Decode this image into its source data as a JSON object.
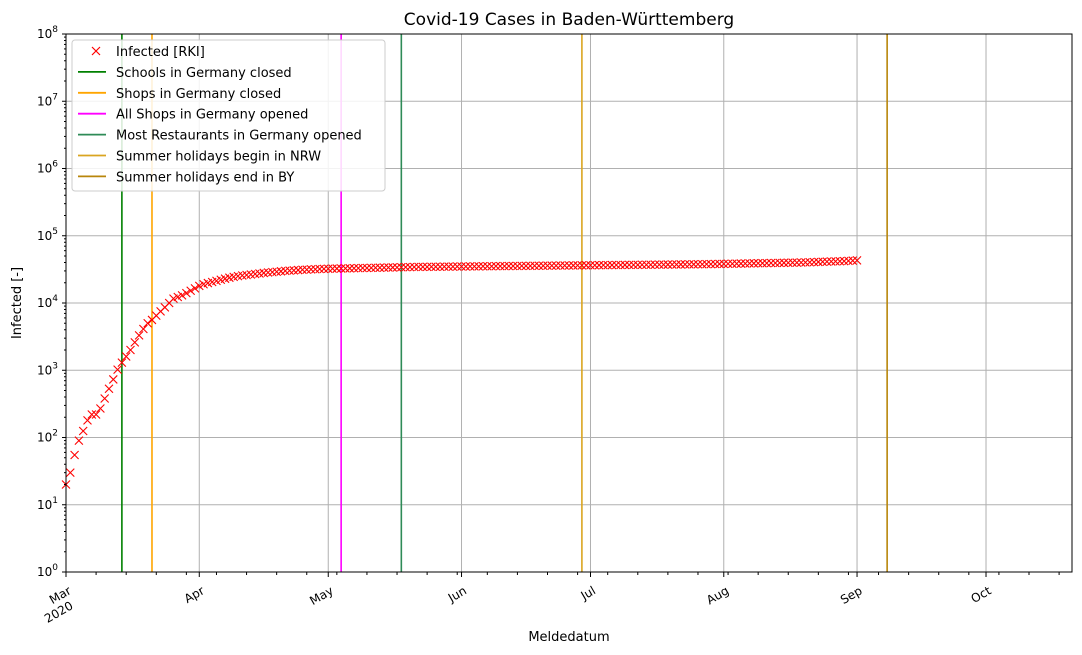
{
  "chart_data": {
    "type": "scatter",
    "title": "Covid-19 Cases in Baden-Württemberg",
    "xlabel": "Meldedatum",
    "ylabel": "Infected [-]",
    "x_axis": {
      "type": "date",
      "range": [
        "2020-03-01",
        "2020-10-21"
      ],
      "ticks": [
        {
          "date": "2020-03-01",
          "label": "Mar",
          "sublabel": "2020"
        },
        {
          "date": "2020-04-01",
          "label": "Apr"
        },
        {
          "date": "2020-05-01",
          "label": "May"
        },
        {
          "date": "2020-06-01",
          "label": "Jun"
        },
        {
          "date": "2020-07-01",
          "label": "Jul"
        },
        {
          "date": "2020-08-01",
          "label": "Aug"
        },
        {
          "date": "2020-09-01",
          "label": "Sep"
        },
        {
          "date": "2020-10-01",
          "label": "Oct"
        }
      ]
    },
    "y_axis": {
      "scale": "log",
      "range": [
        1,
        100000000
      ],
      "tick_exponents": [
        0,
        1,
        2,
        3,
        4,
        5,
        6,
        7,
        8
      ]
    },
    "grid": true,
    "legend_position": "top-left",
    "series": [
      {
        "name": "Infected [RKI]",
        "marker": "x",
        "color": "#ff0000",
        "points": [
          [
            "2020-03-01",
            20
          ],
          [
            "2020-03-02",
            30
          ],
          [
            "2020-03-03",
            55
          ],
          [
            "2020-03-04",
            90
          ],
          [
            "2020-03-05",
            125
          ],
          [
            "2020-03-06",
            180
          ],
          [
            "2020-03-07",
            220
          ],
          [
            "2020-03-08",
            220
          ],
          [
            "2020-03-09",
            270
          ],
          [
            "2020-03-10",
            380
          ],
          [
            "2020-03-11",
            530
          ],
          [
            "2020-03-12",
            730
          ],
          [
            "2020-03-13",
            1020
          ],
          [
            "2020-03-14",
            1300
          ],
          [
            "2020-03-15",
            1600
          ],
          [
            "2020-03-16",
            2000
          ],
          [
            "2020-03-17",
            2600
          ],
          [
            "2020-03-18",
            3300
          ],
          [
            "2020-03-19",
            4100
          ],
          [
            "2020-03-20",
            5000
          ],
          [
            "2020-03-21",
            5600
          ],
          [
            "2020-03-22",
            6500
          ],
          [
            "2020-03-23",
            7500
          ],
          [
            "2020-03-24",
            8600
          ],
          [
            "2020-03-25",
            10000
          ],
          [
            "2020-03-26",
            11600
          ],
          [
            "2020-03-27",
            12300
          ],
          [
            "2020-03-28",
            13000
          ],
          [
            "2020-03-29",
            14000
          ],
          [
            "2020-03-30",
            15200
          ],
          [
            "2020-03-31",
            16500
          ],
          [
            "2020-04-01",
            18000
          ],
          [
            "2020-04-02",
            19000
          ],
          [
            "2020-04-03",
            19800
          ],
          [
            "2020-04-04",
            20500
          ],
          [
            "2020-04-05",
            21300
          ],
          [
            "2020-04-06",
            22200
          ],
          [
            "2020-04-07",
            23000
          ],
          [
            "2020-04-08",
            23800
          ],
          [
            "2020-04-09",
            24500
          ],
          [
            "2020-04-10",
            25100
          ],
          [
            "2020-04-11",
            25600
          ],
          [
            "2020-04-12",
            26100
          ],
          [
            "2020-04-13",
            26500
          ],
          [
            "2020-04-14",
            27000
          ],
          [
            "2020-04-15",
            27500
          ],
          [
            "2020-04-16",
            28000
          ],
          [
            "2020-04-17",
            28400
          ],
          [
            "2020-04-18",
            28800
          ],
          [
            "2020-04-19",
            29200
          ],
          [
            "2020-04-20",
            29600
          ],
          [
            "2020-04-21",
            30000
          ],
          [
            "2020-04-22",
            30300
          ],
          [
            "2020-04-23",
            30600
          ],
          [
            "2020-04-24",
            30900
          ],
          [
            "2020-04-25",
            31200
          ],
          [
            "2020-04-26",
            31400
          ],
          [
            "2020-04-27",
            31600
          ],
          [
            "2020-04-28",
            31800
          ],
          [
            "2020-04-29",
            32000
          ],
          [
            "2020-04-30",
            32200
          ],
          [
            "2020-05-01",
            32300
          ],
          [
            "2020-05-02",
            32400
          ],
          [
            "2020-05-03",
            32500
          ],
          [
            "2020-05-04",
            32600
          ],
          [
            "2020-05-05",
            32700
          ],
          [
            "2020-05-06",
            32800
          ],
          [
            "2020-05-07",
            32900
          ],
          [
            "2020-05-08",
            33000
          ],
          [
            "2020-05-09",
            33100
          ],
          [
            "2020-05-10",
            33200
          ],
          [
            "2020-05-11",
            33300
          ],
          [
            "2020-05-12",
            33400
          ],
          [
            "2020-05-13",
            33500
          ],
          [
            "2020-05-14",
            33600
          ],
          [
            "2020-05-15",
            33700
          ],
          [
            "2020-05-16",
            33800
          ],
          [
            "2020-05-17",
            33900
          ],
          [
            "2020-05-18",
            34000
          ],
          [
            "2020-05-19",
            34100
          ],
          [
            "2020-05-20",
            34200
          ],
          [
            "2020-05-21",
            34300
          ],
          [
            "2020-05-22",
            34400
          ],
          [
            "2020-05-23",
            34450
          ],
          [
            "2020-05-24",
            34500
          ],
          [
            "2020-05-25",
            34550
          ],
          [
            "2020-05-26",
            34600
          ],
          [
            "2020-05-27",
            34650
          ],
          [
            "2020-05-28",
            34700
          ],
          [
            "2020-05-29",
            34750
          ],
          [
            "2020-05-30",
            34800
          ],
          [
            "2020-05-31",
            34850
          ],
          [
            "2020-06-01",
            34900
          ],
          [
            "2020-06-02",
            34950
          ],
          [
            "2020-06-03",
            35000
          ],
          [
            "2020-06-04",
            35050
          ],
          [
            "2020-06-05",
            35100
          ],
          [
            "2020-06-06",
            35150
          ],
          [
            "2020-06-07",
            35200
          ],
          [
            "2020-06-08",
            35250
          ],
          [
            "2020-06-09",
            35300
          ],
          [
            "2020-06-10",
            35350
          ],
          [
            "2020-06-11",
            35400
          ],
          [
            "2020-06-12",
            35450
          ],
          [
            "2020-06-13",
            35500
          ],
          [
            "2020-06-14",
            35550
          ],
          [
            "2020-06-15",
            35600
          ],
          [
            "2020-06-16",
            35650
          ],
          [
            "2020-06-17",
            35700
          ],
          [
            "2020-06-18",
            35750
          ],
          [
            "2020-06-19",
            35800
          ],
          [
            "2020-06-20",
            35850
          ],
          [
            "2020-06-21",
            35900
          ],
          [
            "2020-06-22",
            35950
          ],
          [
            "2020-06-23",
            36000
          ],
          [
            "2020-06-24",
            36050
          ],
          [
            "2020-06-25",
            36100
          ],
          [
            "2020-06-26",
            36150
          ],
          [
            "2020-06-27",
            36200
          ],
          [
            "2020-06-28",
            36250
          ],
          [
            "2020-06-29",
            36300
          ],
          [
            "2020-06-30",
            36350
          ],
          [
            "2020-07-01",
            36400
          ],
          [
            "2020-07-02",
            36450
          ],
          [
            "2020-07-03",
            36500
          ],
          [
            "2020-07-04",
            36550
          ],
          [
            "2020-07-05",
            36600
          ],
          [
            "2020-07-06",
            36650
          ],
          [
            "2020-07-07",
            36700
          ],
          [
            "2020-07-08",
            36750
          ],
          [
            "2020-07-09",
            36800
          ],
          [
            "2020-07-10",
            36850
          ],
          [
            "2020-07-11",
            36900
          ],
          [
            "2020-07-12",
            36950
          ],
          [
            "2020-07-13",
            37000
          ],
          [
            "2020-07-14",
            37050
          ],
          [
            "2020-07-15",
            37100
          ],
          [
            "2020-07-16",
            37150
          ],
          [
            "2020-07-17",
            37200
          ],
          [
            "2020-07-18",
            37250
          ],
          [
            "2020-07-19",
            37300
          ],
          [
            "2020-07-20",
            37350
          ],
          [
            "2020-07-21",
            37400
          ],
          [
            "2020-07-22",
            37450
          ],
          [
            "2020-07-23",
            37500
          ],
          [
            "2020-07-24",
            37550
          ],
          [
            "2020-07-25",
            37600
          ],
          [
            "2020-07-26",
            37650
          ],
          [
            "2020-07-27",
            37700
          ],
          [
            "2020-07-28",
            37800
          ],
          [
            "2020-07-29",
            37900
          ],
          [
            "2020-07-30",
            38000
          ],
          [
            "2020-07-31",
            38100
          ],
          [
            "2020-08-01",
            38200
          ],
          [
            "2020-08-02",
            38300
          ],
          [
            "2020-08-03",
            38400
          ],
          [
            "2020-08-04",
            38500
          ],
          [
            "2020-08-05",
            38600
          ],
          [
            "2020-08-06",
            38700
          ],
          [
            "2020-08-07",
            38800
          ],
          [
            "2020-08-08",
            38900
          ],
          [
            "2020-08-09",
            39000
          ],
          [
            "2020-08-10",
            39100
          ],
          [
            "2020-08-11",
            39200
          ],
          [
            "2020-08-12",
            39300
          ],
          [
            "2020-08-13",
            39400
          ],
          [
            "2020-08-14",
            39500
          ],
          [
            "2020-08-15",
            39600
          ],
          [
            "2020-08-16",
            39700
          ],
          [
            "2020-08-17",
            39800
          ],
          [
            "2020-08-18",
            39900
          ],
          [
            "2020-08-19",
            40000
          ],
          [
            "2020-08-20",
            40200
          ],
          [
            "2020-08-21",
            40400
          ],
          [
            "2020-08-22",
            40600
          ],
          [
            "2020-08-23",
            40800
          ],
          [
            "2020-08-24",
            41000
          ],
          [
            "2020-08-25",
            41200
          ],
          [
            "2020-08-26",
            41400
          ],
          [
            "2020-08-27",
            41600
          ],
          [
            "2020-08-28",
            41800
          ],
          [
            "2020-08-29",
            42000
          ],
          [
            "2020-08-30",
            42300
          ],
          [
            "2020-08-31",
            42600
          ],
          [
            "2020-09-01",
            43000
          ]
        ]
      }
    ],
    "event_lines": [
      {
        "name": "Schools in Germany closed",
        "date": "2020-03-14",
        "color": "#008000"
      },
      {
        "name": "Shops in Germany closed",
        "date": "2020-03-21",
        "color": "#ffa500"
      },
      {
        "name": "All Shops in Germany opened",
        "date": "2020-05-04",
        "color": "#ff00ff"
      },
      {
        "name": "Most Restaurants in Germany opened",
        "date": "2020-05-18",
        "color": "#2e8b57"
      },
      {
        "name": "Summer holidays begin in NRW",
        "date": "2020-06-29",
        "color": "#daa520"
      },
      {
        "name": "Summer holidays end in BY",
        "date": "2020-09-08",
        "color": "#b8860b"
      }
    ]
  }
}
